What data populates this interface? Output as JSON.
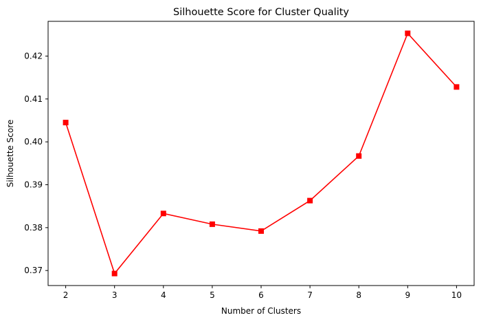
{
  "chart_data": {
    "type": "line",
    "title": "Silhouette Score for Cluster Quality",
    "xlabel": "Number of Clusters",
    "ylabel": "Silhouette Score",
    "x": [
      2,
      3,
      4,
      5,
      6,
      7,
      8,
      9,
      10
    ],
    "series": [
      {
        "values": [
          0.4045,
          0.3693,
          0.3833,
          0.3808,
          0.3792,
          0.3863,
          0.3967,
          0.4253,
          0.4128
        ]
      }
    ],
    "xticks": [
      "2",
      "3",
      "4",
      "5",
      "6",
      "7",
      "8",
      "9",
      "10"
    ],
    "yticks": [
      "0.37",
      "0.38",
      "0.39",
      "0.40",
      "0.41",
      "0.42"
    ],
    "xlim": [
      1.64,
      10.36
    ],
    "ylim": [
      0.3665,
      0.4281
    ],
    "marker": "square",
    "line_color": "#ff0000",
    "grid": false,
    "legend": "none"
  }
}
